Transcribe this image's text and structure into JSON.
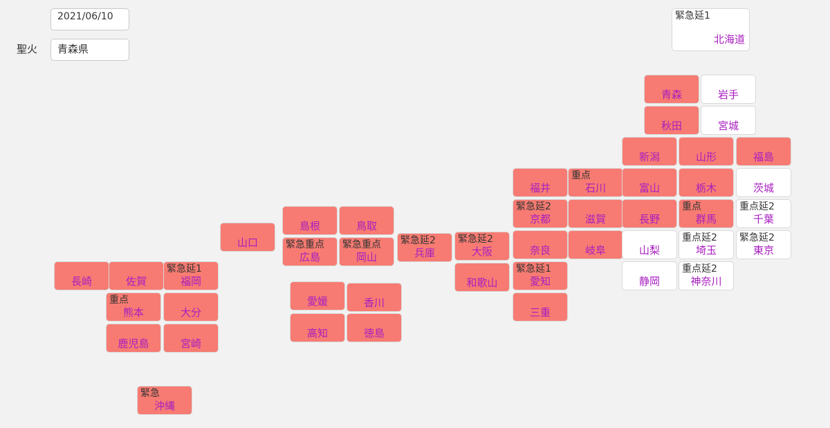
{
  "date": "2021/06/10",
  "torch": {
    "label": "聖火",
    "prefecture": "青森県"
  },
  "tiles": [
    {
      "name": "北海道",
      "status": "緊急延1",
      "color": "#ffffff"
    },
    {
      "name": "青森",
      "color": "#f77b72"
    },
    {
      "name": "岩手",
      "color": "#ffffff"
    },
    {
      "name": "秋田",
      "color": "#f77b72"
    },
    {
      "name": "宮城",
      "color": "#ffffff"
    },
    {
      "name": "新潟",
      "color": "#f77b72"
    },
    {
      "name": "山形",
      "color": "#f77b72"
    },
    {
      "name": "福島",
      "color": "#f77b72"
    },
    {
      "name": "福井",
      "color": "#f77b72"
    },
    {
      "name": "石川",
      "status": "重点",
      "color": "#f77b72"
    },
    {
      "name": "富山",
      "color": "#f77b72"
    },
    {
      "name": "栃木",
      "color": "#f77b72"
    },
    {
      "name": "茨城",
      "color": "#ffffff"
    },
    {
      "name": "京都",
      "status": "緊急延2",
      "color": "#f77b72"
    },
    {
      "name": "滋賀",
      "color": "#f77b72"
    },
    {
      "name": "長野",
      "color": "#f77b72"
    },
    {
      "name": "群馬",
      "status": "重点",
      "color": "#f77b72"
    },
    {
      "name": "千葉",
      "status": "重点延2",
      "color": "#ffffff"
    },
    {
      "name": "奈良",
      "color": "#f77b72"
    },
    {
      "name": "岐阜",
      "color": "#f77b72"
    },
    {
      "name": "山梨",
      "color": "#ffffff"
    },
    {
      "name": "埼玉",
      "status": "重点延2",
      "color": "#ffffff"
    },
    {
      "name": "東京",
      "status": "緊急延2",
      "color": "#ffffff"
    },
    {
      "name": "愛知",
      "status": "緊急延1",
      "color": "#f77b72"
    },
    {
      "name": "静岡",
      "color": "#ffffff"
    },
    {
      "name": "神奈川",
      "status": "重点延2",
      "color": "#ffffff"
    },
    {
      "name": "三重",
      "color": "#f77b72"
    },
    {
      "name": "大阪",
      "status": "緊急延2",
      "color": "#f77b72"
    },
    {
      "name": "和歌山",
      "color": "#f77b72"
    },
    {
      "name": "兵庫",
      "status": "緊急延2",
      "color": "#f77b72"
    },
    {
      "name": "島根",
      "color": "#f77b72"
    },
    {
      "name": "鳥取",
      "color": "#f77b72"
    },
    {
      "name": "広島",
      "status": "緊急重点",
      "color": "#f77b72"
    },
    {
      "name": "岡山",
      "status": "緊急重点",
      "color": "#f77b72"
    },
    {
      "name": "山口",
      "color": "#f77b72"
    },
    {
      "name": "愛媛",
      "color": "#f77b72"
    },
    {
      "name": "香川",
      "color": "#f77b72"
    },
    {
      "name": "高知",
      "color": "#f77b72"
    },
    {
      "name": "徳島",
      "color": "#f77b72"
    },
    {
      "name": "長崎",
      "color": "#f77b72"
    },
    {
      "name": "佐賀",
      "color": "#f77b72"
    },
    {
      "name": "福岡",
      "status": "緊急延1",
      "color": "#f77b72"
    },
    {
      "name": "熊本",
      "status": "重点",
      "color": "#f77b72"
    },
    {
      "name": "大分",
      "color": "#f77b72"
    },
    {
      "name": "鹿児島",
      "color": "#f77b72"
    },
    {
      "name": "宮崎",
      "color": "#f77b72"
    },
    {
      "name": "沖縄",
      "status": "緊急",
      "color": "#f77b72"
    }
  ]
}
